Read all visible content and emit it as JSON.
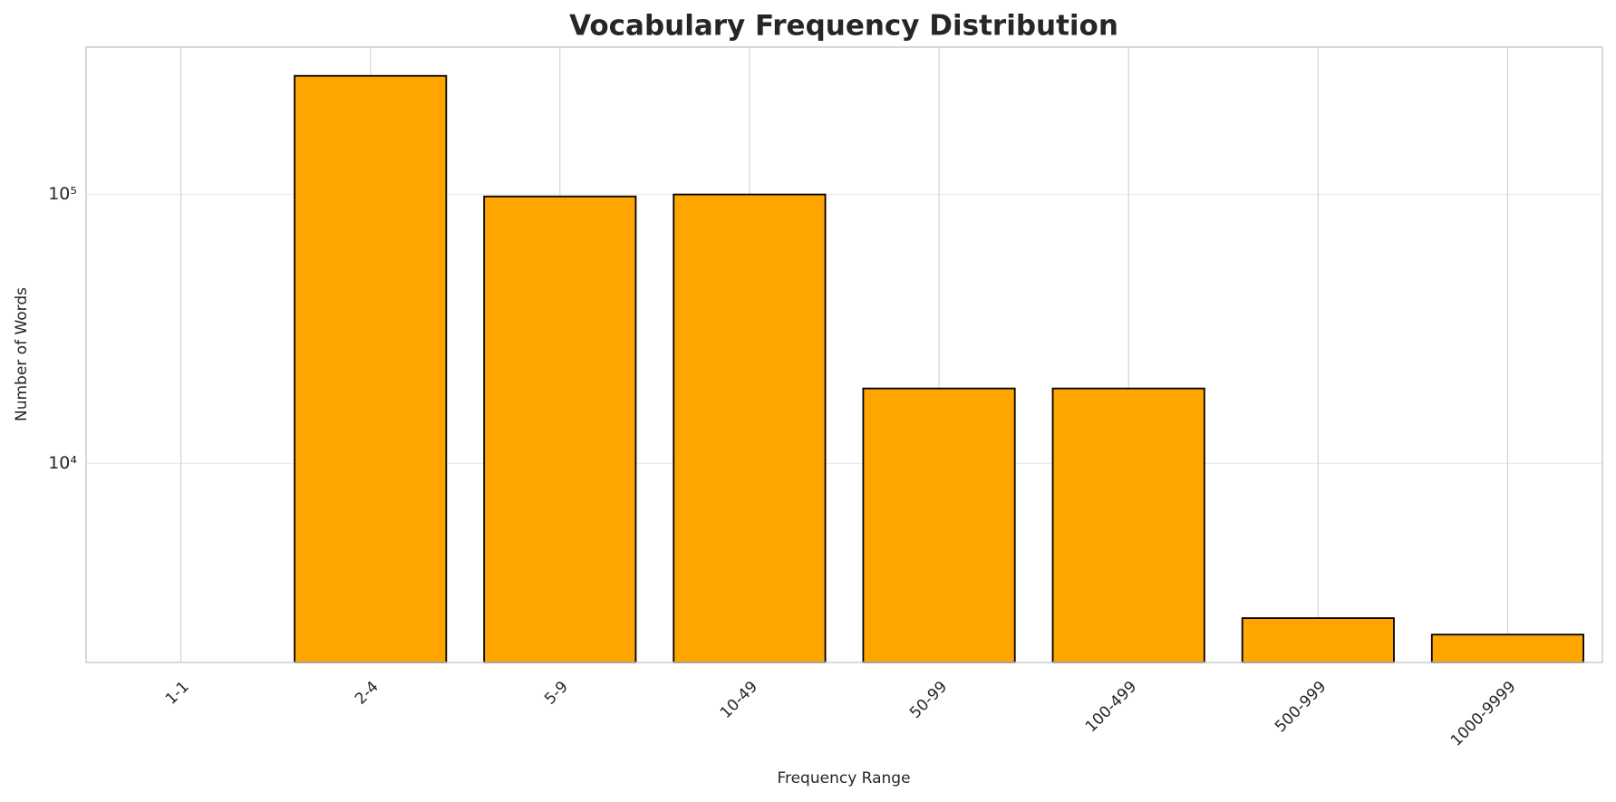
{
  "chart_data": {
    "type": "bar",
    "title": "Vocabulary Frequency Distribution",
    "x_label": "Frequency Range",
    "y_label": "Number of Words",
    "categories": [
      "1-1",
      "2-4",
      "5-9",
      "10-49",
      "50-99",
      "100-499",
      "500-999",
      "1000-9999"
    ],
    "values": [
      0,
      276000,
      98300,
      100000,
      19000,
      19000,
      2660,
      2310
    ],
    "color": "#ffa500",
    "edge_color": "#000000",
    "log_y": true,
    "ylim": [
      1820,
      353000
    ],
    "yticks": [
      {
        "value": 10000,
        "label": "10⁴"
      },
      {
        "value": 100000,
        "label": "10⁵"
      }
    ],
    "grid": true
  }
}
